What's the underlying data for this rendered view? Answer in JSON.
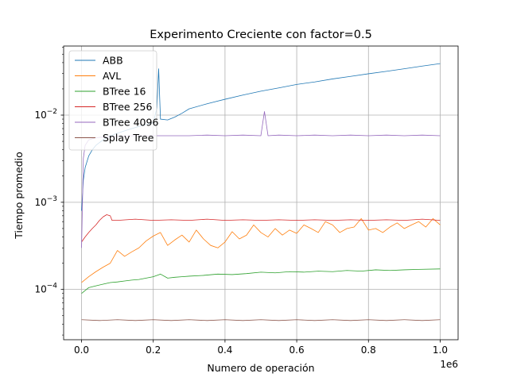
{
  "chart_data": {
    "type": "line",
    "title": "Experimento Creciente con factor=0.5",
    "xlabel": "Numero de operación",
    "ylabel": "Tiempo promedio",
    "x_scale_note": "1e6",
    "xlim": [
      -50000,
      1050000
    ],
    "ylim": [
      2.65e-05,
      0.062
    ],
    "y_scale": "log",
    "grid": true,
    "legend_position": "top-left",
    "x_ticks": [
      {
        "value": 0,
        "label": "0.0"
      },
      {
        "value": 200000,
        "label": "0.2"
      },
      {
        "value": 400000,
        "label": "0.4"
      },
      {
        "value": 600000,
        "label": "0.6"
      },
      {
        "value": 800000,
        "label": "0.8"
      },
      {
        "value": 1000000,
        "label": "1.0"
      }
    ],
    "y_ticks": [
      {
        "value": 0.0001,
        "base": "10",
        "exp": "−4"
      },
      {
        "value": 0.001,
        "base": "10",
        "exp": "−3"
      },
      {
        "value": 0.01,
        "base": "10",
        "exp": "−2"
      }
    ],
    "series": [
      {
        "name": "ABB",
        "color": "#1f77b4",
        "points": [
          [
            0,
            0.0008
          ],
          [
            5000,
            0.0018
          ],
          [
            10000,
            0.0025
          ],
          [
            20000,
            0.0034
          ],
          [
            30000,
            0.004
          ],
          [
            40000,
            0.0045
          ],
          [
            60000,
            0.0052
          ],
          [
            80000,
            0.0058
          ],
          [
            100000,
            0.0062
          ],
          [
            120000,
            0.0066
          ],
          [
            140000,
            0.007
          ],
          [
            160000,
            0.0074
          ],
          [
            180000,
            0.0078
          ],
          [
            200000,
            0.0082
          ],
          [
            210000,
            0.012
          ],
          [
            215000,
            0.034
          ],
          [
            220000,
            0.009
          ],
          [
            240000,
            0.0088
          ],
          [
            260000,
            0.0095
          ],
          [
            280000,
            0.0105
          ],
          [
            300000,
            0.0118
          ],
          [
            350000,
            0.0135
          ],
          [
            400000,
            0.0152
          ],
          [
            450000,
            0.017
          ],
          [
            500000,
            0.0188
          ],
          [
            550000,
            0.0205
          ],
          [
            600000,
            0.0225
          ],
          [
            650000,
            0.024
          ],
          [
            700000,
            0.026
          ],
          [
            750000,
            0.0278
          ],
          [
            800000,
            0.0298
          ],
          [
            850000,
            0.0318
          ],
          [
            900000,
            0.034
          ],
          [
            950000,
            0.0365
          ],
          [
            1000000,
            0.039
          ]
        ]
      },
      {
        "name": "AVL",
        "color": "#ff7f0e",
        "points": [
          [
            0,
            0.00012
          ],
          [
            20000,
            0.00014
          ],
          [
            40000,
            0.00016
          ],
          [
            60000,
            0.00018
          ],
          [
            80000,
            0.0002
          ],
          [
            100000,
            0.00028
          ],
          [
            120000,
            0.00024
          ],
          [
            140000,
            0.00027
          ],
          [
            160000,
            0.0003
          ],
          [
            180000,
            0.00036
          ],
          [
            200000,
            0.00041
          ],
          [
            220000,
            0.00045
          ],
          [
            240000,
            0.00032
          ],
          [
            260000,
            0.00037
          ],
          [
            280000,
            0.00042
          ],
          [
            300000,
            0.00035
          ],
          [
            320000,
            0.00048
          ],
          [
            340000,
            0.00038
          ],
          [
            360000,
            0.00032
          ],
          [
            380000,
            0.0003
          ],
          [
            400000,
            0.00035
          ],
          [
            420000,
            0.00046
          ],
          [
            440000,
            0.00038
          ],
          [
            460000,
            0.00042
          ],
          [
            480000,
            0.00055
          ],
          [
            500000,
            0.00045
          ],
          [
            520000,
            0.0004
          ],
          [
            540000,
            0.0005
          ],
          [
            560000,
            0.00042
          ],
          [
            580000,
            0.00048
          ],
          [
            600000,
            0.00044
          ],
          [
            620000,
            0.00055
          ],
          [
            640000,
            0.0005
          ],
          [
            660000,
            0.00045
          ],
          [
            680000,
            0.0006
          ],
          [
            700000,
            0.00055
          ],
          [
            720000,
            0.00045
          ],
          [
            740000,
            0.0005
          ],
          [
            760000,
            0.00052
          ],
          [
            780000,
            0.00065
          ],
          [
            800000,
            0.00048
          ],
          [
            820000,
            0.0005
          ],
          [
            840000,
            0.00045
          ],
          [
            860000,
            0.00052
          ],
          [
            880000,
            0.00058
          ],
          [
            900000,
            0.0005
          ],
          [
            920000,
            0.00055
          ],
          [
            940000,
            0.0006
          ],
          [
            960000,
            0.00052
          ],
          [
            980000,
            0.00065
          ],
          [
            1000000,
            0.00055
          ]
        ]
      },
      {
        "name": "BTree 16",
        "color": "#2ca02c",
        "points": [
          [
            0,
            9e-05
          ],
          [
            20000,
            0.000105
          ],
          [
            40000,
            0.00011
          ],
          [
            60000,
            0.000115
          ],
          [
            80000,
            0.00012
          ],
          [
            100000,
            0.000122
          ],
          [
            120000,
            0.000125
          ],
          [
            140000,
            0.000128
          ],
          [
            160000,
            0.00013
          ],
          [
            180000,
            0.000135
          ],
          [
            200000,
            0.00014
          ],
          [
            220000,
            0.00015
          ],
          [
            240000,
            0.000135
          ],
          [
            260000,
            0.000138
          ],
          [
            280000,
            0.00014
          ],
          [
            300000,
            0.000142
          ],
          [
            340000,
            0.000145
          ],
          [
            380000,
            0.00015
          ],
          [
            420000,
            0.000148
          ],
          [
            460000,
            0.000152
          ],
          [
            500000,
            0.000158
          ],
          [
            540000,
            0.000155
          ],
          [
            580000,
            0.00016
          ],
          [
            620000,
            0.000158
          ],
          [
            660000,
            0.000162
          ],
          [
            700000,
            0.00016
          ],
          [
            740000,
            0.000165
          ],
          [
            780000,
            0.000162
          ],
          [
            820000,
            0.000168
          ],
          [
            860000,
            0.000165
          ],
          [
            900000,
            0.000168
          ],
          [
            940000,
            0.00017
          ],
          [
            1000000,
            0.000172
          ]
        ]
      },
      {
        "name": "BTree 256",
        "color": "#d62728",
        "points": [
          [
            0,
            0.00035
          ],
          [
            10000,
            0.0004
          ],
          [
            20000,
            0.00045
          ],
          [
            30000,
            0.0005
          ],
          [
            40000,
            0.00055
          ],
          [
            50000,
            0.00062
          ],
          [
            60000,
            0.00068
          ],
          [
            70000,
            0.00072
          ],
          [
            80000,
            0.0007
          ],
          [
            85000,
            0.00062
          ],
          [
            100000,
            0.00062
          ],
          [
            150000,
            0.00064
          ],
          [
            200000,
            0.00062
          ],
          [
            250000,
            0.00063
          ],
          [
            300000,
            0.00062
          ],
          [
            350000,
            0.00064
          ],
          [
            400000,
            0.00062
          ],
          [
            450000,
            0.00063
          ],
          [
            500000,
            0.00062
          ],
          [
            550000,
            0.00063
          ],
          [
            600000,
            0.00062
          ],
          [
            650000,
            0.00063
          ],
          [
            700000,
            0.00062
          ],
          [
            750000,
            0.00063
          ],
          [
            800000,
            0.00062
          ],
          [
            850000,
            0.00063
          ],
          [
            900000,
            0.00062
          ],
          [
            950000,
            0.00064
          ],
          [
            1000000,
            0.00062
          ]
        ]
      },
      {
        "name": "BTree 4096",
        "color": "#9467bd",
        "points": [
          [
            0,
            0.0003
          ],
          [
            5000,
            0.0032
          ],
          [
            10000,
            0.0045
          ],
          [
            20000,
            0.0052
          ],
          [
            40000,
            0.0055
          ],
          [
            60000,
            0.0056
          ],
          [
            100000,
            0.0057
          ],
          [
            150000,
            0.0058
          ],
          [
            200000,
            0.0058
          ],
          [
            250000,
            0.0058
          ],
          [
            300000,
            0.0058
          ],
          [
            350000,
            0.0059
          ],
          [
            400000,
            0.0058
          ],
          [
            450000,
            0.0059
          ],
          [
            500000,
            0.0058
          ],
          [
            510000,
            0.011
          ],
          [
            520000,
            0.0058
          ],
          [
            550000,
            0.0059
          ],
          [
            600000,
            0.0058
          ],
          [
            650000,
            0.0059
          ],
          [
            700000,
            0.0058
          ],
          [
            750000,
            0.0059
          ],
          [
            800000,
            0.0058
          ],
          [
            850000,
            0.0059
          ],
          [
            900000,
            0.0058
          ],
          [
            950000,
            0.0059
          ],
          [
            1000000,
            0.0058
          ]
        ]
      },
      {
        "name": "Splay Tree",
        "color": "#8c564b",
        "points": [
          [
            0,
            4.5e-05
          ],
          [
            50000,
            4.4e-05
          ],
          [
            100000,
            4.5e-05
          ],
          [
            150000,
            4.4e-05
          ],
          [
            200000,
            4.5e-05
          ],
          [
            250000,
            4.4e-05
          ],
          [
            300000,
            4.5e-05
          ],
          [
            350000,
            4.4e-05
          ],
          [
            400000,
            4.5e-05
          ],
          [
            450000,
            4.4e-05
          ],
          [
            500000,
            4.5e-05
          ],
          [
            550000,
            4.4e-05
          ],
          [
            600000,
            4.5e-05
          ],
          [
            650000,
            4.4e-05
          ],
          [
            700000,
            4.5e-05
          ],
          [
            750000,
            4.4e-05
          ],
          [
            800000,
            4.5e-05
          ],
          [
            850000,
            4.4e-05
          ],
          [
            900000,
            4.5e-05
          ],
          [
            950000,
            4.4e-05
          ],
          [
            1000000,
            4.5e-05
          ]
        ]
      }
    ]
  }
}
